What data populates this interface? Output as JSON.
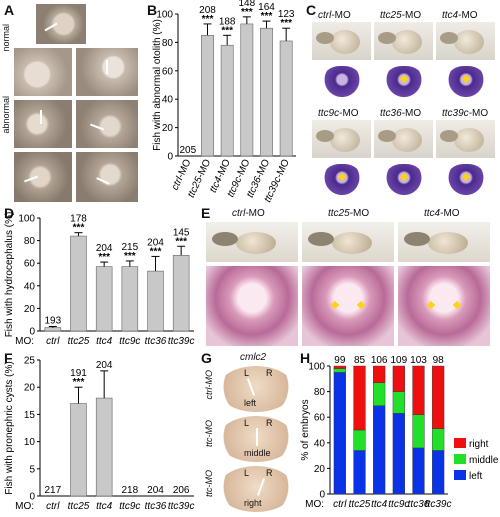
{
  "panels": {
    "A": {
      "label": "A",
      "row_labels": {
        "normal": "normal",
        "abnormal": "abnormal"
      }
    },
    "B": {
      "label": "B"
    },
    "C": {
      "label": "C",
      "captions": [
        {
          "gene": "ctrl",
          "suffix": "-MO"
        },
        {
          "gene": "ttc25",
          "suffix": "-MO"
        },
        {
          "gene": "ttc4",
          "suffix": "-MO"
        },
        {
          "gene": "ttc9c",
          "suffix": "-MO"
        },
        {
          "gene": "ttc36",
          "suffix": "-MO"
        },
        {
          "gene": "ttc39c",
          "suffix": "-MO"
        }
      ]
    },
    "D": {
      "label": "D"
    },
    "E": {
      "label": "E",
      "captions": [
        {
          "gene": "ctrl",
          "suffix": "-MO"
        },
        {
          "gene": "ttc25",
          "suffix": "-MO"
        },
        {
          "gene": "ttc4",
          "suffix": "-MO"
        }
      ]
    },
    "F": {
      "label": "F"
    },
    "G": {
      "label": "G",
      "title": "cmlc2",
      "rows": [
        {
          "morph": "ctrl-MO",
          "pos": "left"
        },
        {
          "morph": "ttc-MO",
          "pos": "middle"
        },
        {
          "morph": "ttc-MO",
          "pos": "right"
        }
      ],
      "L": "L",
      "R": "R"
    },
    "H": {
      "label": "H"
    }
  },
  "mo_prefix": "MO:",
  "sig": "***",
  "chart_data": [
    {
      "id": "B",
      "type": "bar",
      "categories": [
        "ctrl-MO",
        "ttc25-MO",
        "ttc4-MO",
        "ttc9c-MO",
        "ttc36-MO",
        "ttc39c-MO"
      ],
      "values": [
        0,
        85,
        78,
        93,
        90,
        81
      ],
      "errors": [
        0,
        8,
        7,
        5,
        5,
        9
      ],
      "counts": [
        "205",
        "208",
        "188",
        "148",
        "164",
        "123"
      ],
      "sig": [
        false,
        true,
        true,
        true,
        true,
        true
      ],
      "ylabel": "Fish with abnormal otolith (%)",
      "ylim": [
        0,
        100
      ],
      "yticks": [
        0,
        20,
        40,
        60,
        80,
        100
      ]
    },
    {
      "id": "D",
      "type": "bar",
      "categories": [
        "ctrl",
        "ttc25",
        "ttc4",
        "ttc9c",
        "ttc36",
        "ttc39c"
      ],
      "values": [
        3,
        84,
        57,
        57,
        53,
        67
      ],
      "errors": [
        1,
        3,
        4,
        5,
        13,
        8
      ],
      "counts": [
        "193",
        "178",
        "204",
        "215",
        "204",
        "145"
      ],
      "sig": [
        false,
        true,
        true,
        true,
        true,
        true
      ],
      "ylabel": "Fish with hydrocephalus (%)",
      "ylim": [
        0,
        100
      ],
      "yticks": [
        0,
        20,
        40,
        60,
        80,
        100
      ]
    },
    {
      "id": "F",
      "type": "bar",
      "categories": [
        "ctrl",
        "ttc25",
        "ttc4",
        "ttc9c",
        "ttc36",
        "ttc39c"
      ],
      "values": [
        0,
        17,
        18,
        0,
        0,
        0
      ],
      "errors": [
        0,
        3,
        5,
        0,
        0,
        0
      ],
      "counts": [
        "217",
        "191",
        "204",
        "218",
        "204",
        "206"
      ],
      "sig": [
        false,
        true,
        false,
        false,
        false,
        false
      ],
      "ylabel": "Fish with pronephric cysts (%)",
      "ylim": [
        0,
        25
      ],
      "yticks": [
        0,
        5,
        10,
        15,
        20,
        25
      ]
    },
    {
      "id": "H",
      "type": "bar",
      "stacked": true,
      "categories": [
        "ctrl",
        "ttc25",
        "ttc4",
        "ttc9c",
        "ttc36",
        "ttc39c"
      ],
      "counts": [
        "99",
        "85",
        "106",
        "109",
        "103",
        "98"
      ],
      "series": [
        {
          "name": "left",
          "color": "#0a32e6",
          "values": [
            95,
            34,
            69,
            63,
            36,
            34
          ]
        },
        {
          "name": "middle",
          "color": "#22e02a",
          "values": [
            3,
            16,
            18,
            17,
            26,
            17
          ]
        },
        {
          "name": "right",
          "color": "#ee1010",
          "values": [
            2,
            50,
            13,
            20,
            38,
            49
          ]
        }
      ],
      "ylabel": "% of embryos",
      "ylim": [
        0,
        100
      ],
      "yticks": [
        0,
        20,
        40,
        60,
        80,
        100
      ],
      "legend": "right"
    }
  ]
}
